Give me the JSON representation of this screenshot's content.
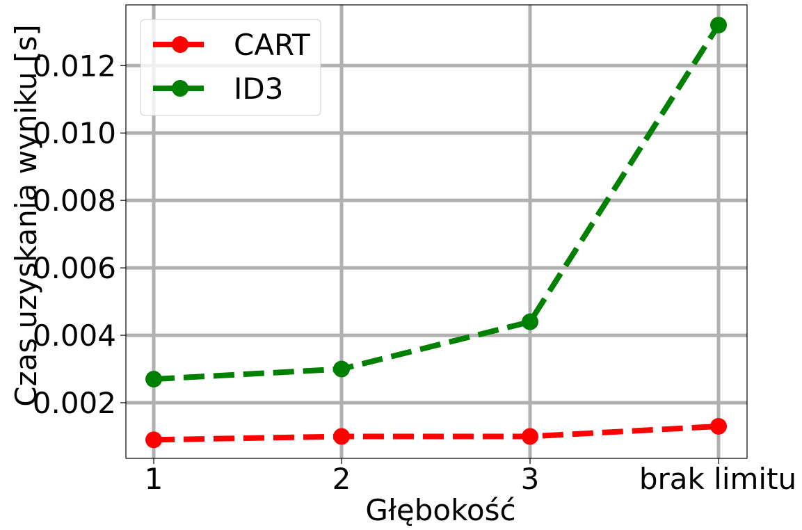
{
  "chart_data": {
    "type": "line",
    "categories": [
      "1",
      "2",
      "3",
      "brak limitu"
    ],
    "series": [
      {
        "name": "CART",
        "color": "#ff0000",
        "values": [
          0.0009,
          0.001,
          0.001,
          0.0013
        ]
      },
      {
        "name": "ID3",
        "color": "#008000",
        "values": [
          0.0027,
          0.003,
          0.0044,
          0.0132
        ]
      }
    ],
    "y_ticks": [
      0.002,
      0.004,
      0.006,
      0.008,
      0.01,
      0.012
    ],
    "y_tick_labels": [
      "0.002",
      "0.004",
      "0.006",
      "0.008",
      "0.010",
      "0.012"
    ],
    "ylim": [
      0.00035,
      0.0138
    ],
    "xlabel": "Głębokość",
    "ylabel": "Czas uzyskania wyniku [s]",
    "title": "",
    "grid": true,
    "line_style": "dashed",
    "marker": "circle",
    "legend_position": "top-left",
    "grid_color": "#b0b0b0"
  }
}
